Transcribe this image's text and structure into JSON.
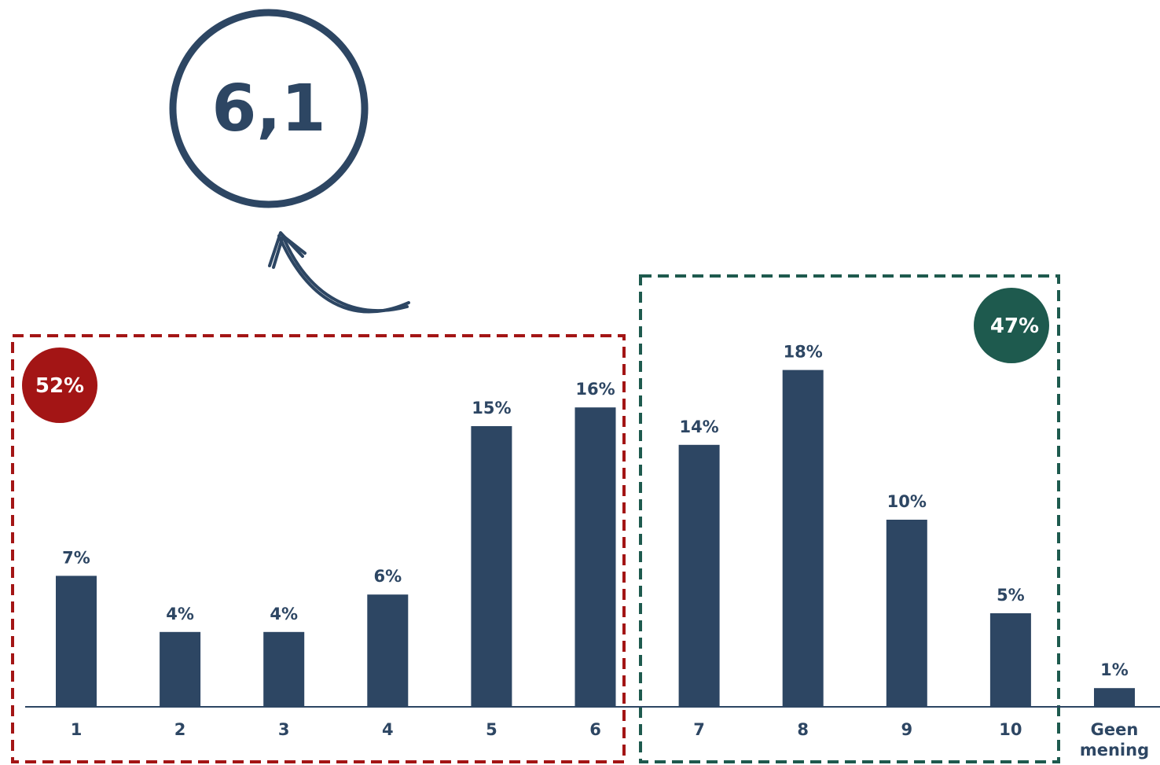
{
  "score": {
    "value": "6,1"
  },
  "groups": {
    "low": {
      "label": "52%",
      "color": "#a31515"
    },
    "high": {
      "label": "47%",
      "color": "#1e5a4e"
    }
  },
  "colors": {
    "bar": "#2d4663",
    "axis": "#2d4663",
    "text": "#2d4663",
    "badge_text": "#ffffff"
  },
  "chart_data": {
    "type": "bar",
    "categories": [
      "1",
      "2",
      "3",
      "4",
      "5",
      "6",
      "7",
      "8",
      "9",
      "10",
      "Geen mening"
    ],
    "values": [
      7,
      4,
      4,
      6,
      15,
      16,
      14,
      18,
      10,
      5,
      1
    ],
    "data_labels": [
      "7%",
      "4%",
      "4%",
      "6%",
      "15%",
      "16%",
      "14%",
      "18%",
      "10%",
      "5%",
      "1%"
    ],
    "ylim": [
      0,
      18
    ],
    "grid": false,
    "legend": "none"
  }
}
